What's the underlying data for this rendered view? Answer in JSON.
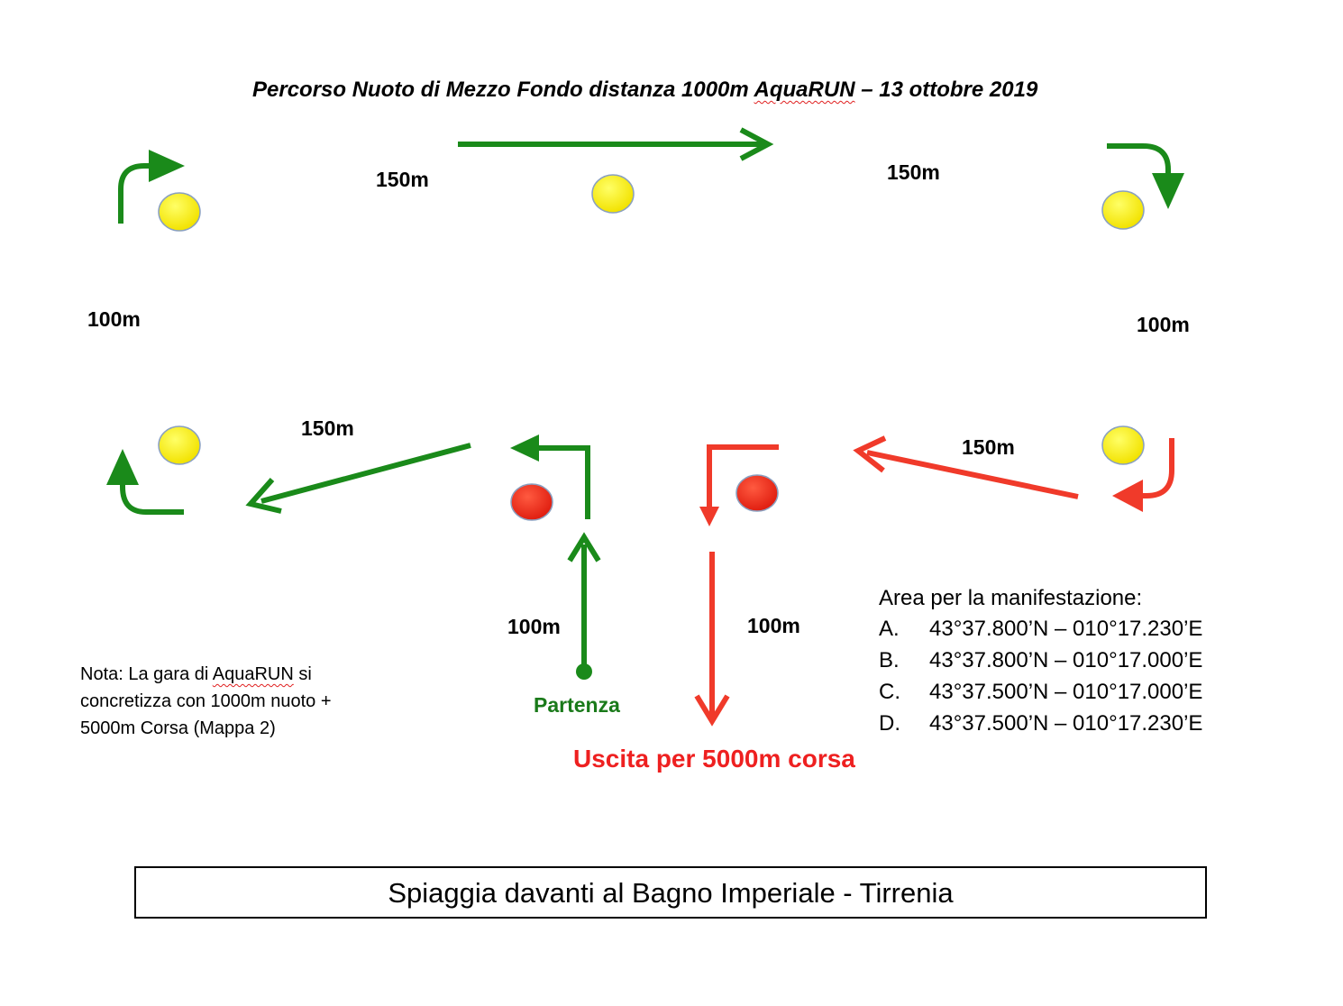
{
  "title": {
    "prefix": "Percorso Nuoto di Mezzo Fondo distanza 1000m  ",
    "brand": "AquaRUN",
    "suffix": " – 13 ottobre 2019"
  },
  "segments": {
    "top_left": "150m",
    "top_right": "150m",
    "left_side": "100m",
    "right_side": "100m",
    "bottom_left": "150m",
    "bottom_right": "150m",
    "start_leg": "100m",
    "exit_leg": "100m"
  },
  "start_label": "Partenza",
  "exit_label": "Uscita per 5000m corsa",
  "note": {
    "line1_a": "Nota: La gara di ",
    "brand": "AquaRUN",
    "line1_b": " si",
    "line2": "concretizza con 1000m nuoto +",
    "line3": "5000m Corsa (Mappa 2)"
  },
  "area": {
    "heading": "Area per la manifestazione:",
    "points": [
      {
        "letter": "A.",
        "coords": "43°37.800’N – 010°17.230’E"
      },
      {
        "letter": "B.",
        "coords": "43°37.800’N – 010°17.000’E"
      },
      {
        "letter": "C.",
        "coords": "43°37.500’N – 010°17.000’E"
      },
      {
        "letter": "D.",
        "coords": "43°37.500’N – 010°17.230’E"
      }
    ]
  },
  "footer": "Spiaggia davanti al Bagno Imperiale - Tirrenia",
  "colors": {
    "green": "#1a8a1a",
    "red": "#f03a2a",
    "buoy_yellow": "#ffee00",
    "buoy_red": "#ee2a1a"
  }
}
